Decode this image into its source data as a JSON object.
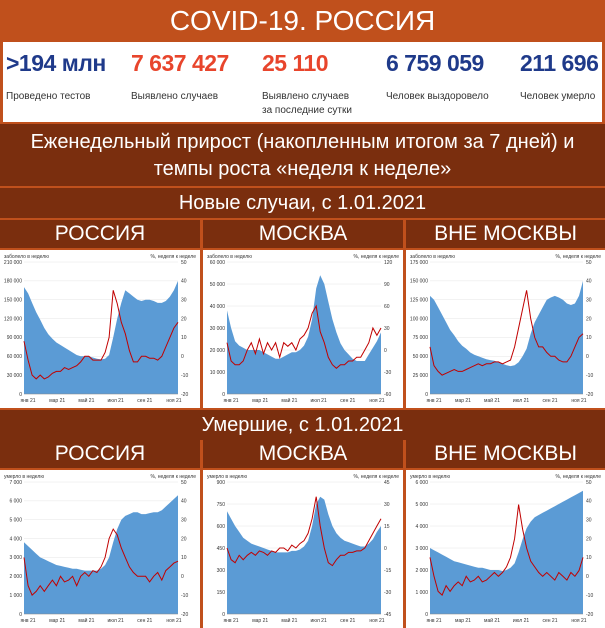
{
  "header": {
    "title": "COVID-19. РОССИЯ"
  },
  "stats": [
    {
      "value": ">194 млн",
      "label": "Проведено тестов",
      "color": "#1f3a8a"
    },
    {
      "value": "7 637 427",
      "label": "Выявлено случаев",
      "color": "#e8452c"
    },
    {
      "value": "25 110",
      "label": "Выявлено случаев\nза последние сутки",
      "color": "#e8452c"
    },
    {
      "value": "6 759 059",
      "label": "Человек выздоровело",
      "color": "#1f3a8a"
    },
    {
      "value": "211 696",
      "label": "Человек умерло",
      "color": "#1f3a8a"
    }
  ],
  "subtitle": "Еженедельный прирост (накопленным итогом за 7 дней) и темпы роста «неделя к неделе»",
  "sections": {
    "cases": "Новые случаи, с 1.01.2021",
    "deaths": "Умершие, с 1.01.2021"
  },
  "regions": [
    "РОССИЯ",
    "МОСКВА",
    "ВНЕ МОСКВЫ"
  ],
  "colors": {
    "area": "#5b9bd5",
    "line": "#c00000",
    "band": "#7a2e0e",
    "bg": "#c0501c"
  },
  "chart_data": [
    {
      "type": "area",
      "region": "РОССИЯ",
      "metric": "cases",
      "left_label": "заболело в неделю",
      "right_label": "%, неделя к неделе",
      "x_ticks": [
        "янв 21",
        "мар 21",
        "май 21",
        "июл 21",
        "сен 21",
        "ноя 21"
      ],
      "ylim": [
        0,
        210000
      ],
      "y_ticks": [
        0,
        30000,
        60000,
        90000,
        120000,
        150000,
        180000,
        210000
      ],
      "y_tick_labels": [
        "0",
        "30 000",
        "60 000",
        "90 000",
        "120 000",
        "150 000",
        "180 000",
        "210 000"
      ],
      "y2lim": [
        -20,
        50
      ],
      "y2_ticks": [
        -20,
        -10,
        0,
        10,
        20,
        30,
        40,
        50
      ],
      "series": [
        {
          "values": [
            170000,
            160000,
            145000,
            130000,
            118000,
            105000,
            95000,
            88000,
            82000,
            78000,
            74000,
            70000,
            66000,
            62000,
            60000,
            60000,
            60000,
            58000,
            56000,
            55000,
            56000,
            62000,
            90000,
            120000,
            145000,
            165000,
            160000,
            155000,
            150000,
            148000,
            150000,
            150000,
            148000,
            145000,
            145000,
            148000,
            155000,
            165000,
            180000
          ]
        },
        {
          "values": [
            8,
            -2,
            -10,
            -12,
            -10,
            -12,
            -11,
            -9,
            -8,
            -8,
            -6,
            -7,
            -6,
            -5,
            -3,
            0,
            0,
            -2,
            -2,
            -2,
            2,
            10,
            35,
            28,
            18,
            12,
            3,
            -3,
            -3,
            0,
            0,
            -1,
            -1,
            -2,
            0,
            5,
            10,
            15,
            18
          ]
        }
      ]
    },
    {
      "type": "area",
      "region": "МОСКВА",
      "metric": "cases",
      "left_label": "заболело в неделю",
      "right_label": "%, неделя к неделе",
      "x_ticks": [
        "янв 21",
        "мар 21",
        "май 21",
        "июл 21",
        "сен 21",
        "ноя 21"
      ],
      "ylim": [
        0,
        60000
      ],
      "y_ticks": [
        0,
        10000,
        20000,
        30000,
        40000,
        50000,
        60000
      ],
      "y_tick_labels": [
        "0",
        "10 000",
        "20 000",
        "30 000",
        "40 000",
        "50 000",
        "60 000"
      ],
      "y2lim": [
        -60,
        120
      ],
      "y2_ticks": [
        -60,
        -30,
        0,
        30,
        60,
        90,
        120
      ],
      "series": [
        {
          "values": [
            38000,
            30000,
            24000,
            22000,
            21000,
            20000,
            20000,
            20000,
            20000,
            19000,
            18000,
            17000,
            16000,
            16000,
            17000,
            18000,
            19000,
            19000,
            20000,
            22000,
            26000,
            34000,
            48000,
            54000,
            50000,
            42000,
            34000,
            28000,
            23000,
            20000,
            18000,
            16000,
            15000,
            15000,
            15000,
            18000,
            21000,
            24000,
            28000
          ]
        },
        {
          "values": [
            10,
            -15,
            -20,
            -20,
            -15,
            0,
            10,
            -5,
            15,
            -5,
            10,
            0,
            10,
            -10,
            10,
            5,
            10,
            0,
            15,
            20,
            30,
            50,
            60,
            25,
            10,
            -10,
            -20,
            -25,
            -20,
            -20,
            -15,
            -15,
            -10,
            -10,
            0,
            10,
            30,
            20,
            30
          ]
        }
      ]
    },
    {
      "type": "area",
      "region": "ВНЕ МОСКВЫ",
      "metric": "cases",
      "left_label": "заболело в неделю",
      "right_label": "%, неделя к неделе",
      "x_ticks": [
        "янв 21",
        "мар 21",
        "май 21",
        "июл 21",
        "сен 21",
        "ноя 21"
      ],
      "ylim": [
        0,
        175000
      ],
      "y_ticks": [
        0,
        25000,
        50000,
        75000,
        100000,
        125000,
        150000,
        175000
      ],
      "y_tick_labels": [
        "0",
        "25 000",
        "50 000",
        "75 000",
        "100 000",
        "125 000",
        "150 000",
        "175 000"
      ],
      "y2lim": [
        -20,
        50
      ],
      "y2_ticks": [
        -20,
        -10,
        0,
        10,
        20,
        30,
        40,
        50
      ],
      "series": [
        {
          "values": [
            130000,
            125000,
            115000,
            105000,
            95000,
            85000,
            78000,
            70000,
            64000,
            60000,
            55000,
            52000,
            50000,
            48000,
            46000,
            45000,
            44000,
            42000,
            40000,
            38000,
            37000,
            38000,
            42000,
            50000,
            60000,
            80000,
            95000,
            105000,
            115000,
            125000,
            128000,
            130000,
            128000,
            125000,
            120000,
            118000,
            120000,
            130000,
            150000
          ]
        },
        {
          "values": [
            5,
            -5,
            -8,
            -10,
            -9,
            -8,
            -7,
            -8,
            -8,
            -7,
            -6,
            -5,
            -4,
            -5,
            -4,
            -4,
            -3,
            -3,
            -4,
            -3,
            -2,
            5,
            15,
            25,
            35,
            20,
            10,
            5,
            5,
            2,
            0,
            0,
            -2,
            -3,
            -3,
            0,
            5,
            10,
            12
          ]
        }
      ]
    },
    {
      "type": "area",
      "region": "РОССИЯ",
      "metric": "deaths",
      "left_label": "умерло в неделю",
      "right_label": "%, неделя к неделе",
      "x_ticks": [
        "янв 21",
        "мар 21",
        "май 21",
        "июл 21",
        "сен 21",
        "ноя 21"
      ],
      "ylim": [
        0,
        7000
      ],
      "y_ticks": [
        0,
        1000,
        2000,
        3000,
        4000,
        5000,
        6000,
        7000
      ],
      "y_tick_labels": [
        "0",
        "1 000",
        "2 000",
        "3 000",
        "4 000",
        "5 000",
        "6 000",
        "7 000"
      ],
      "y2lim": [
        -20,
        50
      ],
      "y2_ticks": [
        -20,
        -10,
        0,
        10,
        20,
        30,
        40,
        50
      ],
      "series": [
        {
          "values": [
            3800,
            3600,
            3400,
            3200,
            3000,
            2900,
            2800,
            2700,
            2600,
            2550,
            2500,
            2450,
            2400,
            2400,
            2350,
            2300,
            2300,
            2300,
            2300,
            2400,
            2600,
            3000,
            3800,
            4500,
            5000,
            5200,
            5300,
            5400,
            5400,
            5300,
            5300,
            5350,
            5400,
            5400,
            5500,
            5700,
            5900,
            6100,
            6300
          ]
        },
        {
          "values": [
            10,
            -5,
            -10,
            -8,
            -5,
            -8,
            -5,
            -2,
            -5,
            0,
            -3,
            -2,
            0,
            -5,
            0,
            2,
            0,
            3,
            2,
            5,
            10,
            20,
            25,
            22,
            15,
            10,
            5,
            2,
            0,
            0,
            0,
            -3,
            0,
            2,
            -2,
            3,
            5,
            7,
            8
          ]
        }
      ]
    },
    {
      "type": "area",
      "region": "МОСКВА",
      "metric": "deaths",
      "left_label": "умерло в неделю",
      "right_label": "%, неделя к неделе",
      "x_ticks": [
        "янв 21",
        "мар 21",
        "май 21",
        "июл 21",
        "сен 21",
        "ноя 21"
      ],
      "ylim": [
        0,
        900
      ],
      "y_ticks": [
        0,
        150,
        300,
        450,
        600,
        750,
        900
      ],
      "y_tick_labels": [
        "0",
        "150",
        "300",
        "450",
        "600",
        "750",
        "900"
      ],
      "y2lim": [
        -45,
        45
      ],
      "y2_ticks": [
        -45,
        -30,
        -15,
        0,
        15,
        30,
        45
      ],
      "series": [
        {
          "values": [
            700,
            650,
            600,
            560,
            520,
            500,
            480,
            470,
            460,
            450,
            440,
            430,
            420,
            420,
            420,
            420,
            430,
            430,
            440,
            460,
            500,
            600,
            750,
            800,
            780,
            680,
            600,
            550,
            520,
            500,
            490,
            480,
            470,
            460,
            460,
            480,
            510,
            560,
            600
          ]
        },
        {
          "values": [
            0,
            -8,
            -10,
            -5,
            -8,
            -5,
            -3,
            -5,
            -2,
            -3,
            -5,
            -2,
            -3,
            0,
            0,
            -2,
            2,
            0,
            3,
            5,
            10,
            20,
            35,
            15,
            0,
            -10,
            -12,
            -8,
            -5,
            -5,
            -3,
            -3,
            -2,
            -2,
            0,
            5,
            10,
            15,
            20
          ]
        }
      ]
    },
    {
      "type": "area",
      "region": "ВНЕ МОСКВЫ",
      "metric": "deaths",
      "left_label": "умерло в неделю",
      "right_label": "%, неделя к неделе",
      "x_ticks": [
        "янв 21",
        "мар 21",
        "май 21",
        "июл 21",
        "сен 21",
        "ноя 21"
      ],
      "ylim": [
        0,
        6000
      ],
      "y_ticks": [
        0,
        1000,
        2000,
        3000,
        4000,
        5000,
        6000
      ],
      "y_tick_labels": [
        "0",
        "1 000",
        "2 000",
        "3 000",
        "4 000",
        "5 000",
        "6 000"
      ],
      "y2lim": [
        -20,
        50
      ],
      "y2_ticks": [
        -20,
        -10,
        0,
        10,
        20,
        30,
        40,
        50
      ],
      "series": [
        {
          "values": [
            3000,
            2900,
            2800,
            2700,
            2600,
            2500,
            2400,
            2350,
            2300,
            2250,
            2200,
            2150,
            2100,
            2100,
            2050,
            2000,
            2000,
            2000,
            1950,
            2000,
            2100,
            2300,
            2800,
            3400,
            3900,
            4200,
            4400,
            4500,
            4600,
            4700,
            4800,
            4900,
            5000,
            5100,
            5200,
            5300,
            5400,
            5500,
            5600
          ]
        },
        {
          "values": [
            10,
            0,
            -8,
            -10,
            -5,
            -8,
            -5,
            -3,
            -5,
            0,
            -3,
            -2,
            0,
            -3,
            -2,
            0,
            2,
            0,
            2,
            5,
            10,
            20,
            38,
            25,
            15,
            8,
            5,
            2,
            0,
            2,
            0,
            -2,
            2,
            0,
            -2,
            2,
            0,
            3,
            10
          ]
        }
      ]
    }
  ]
}
